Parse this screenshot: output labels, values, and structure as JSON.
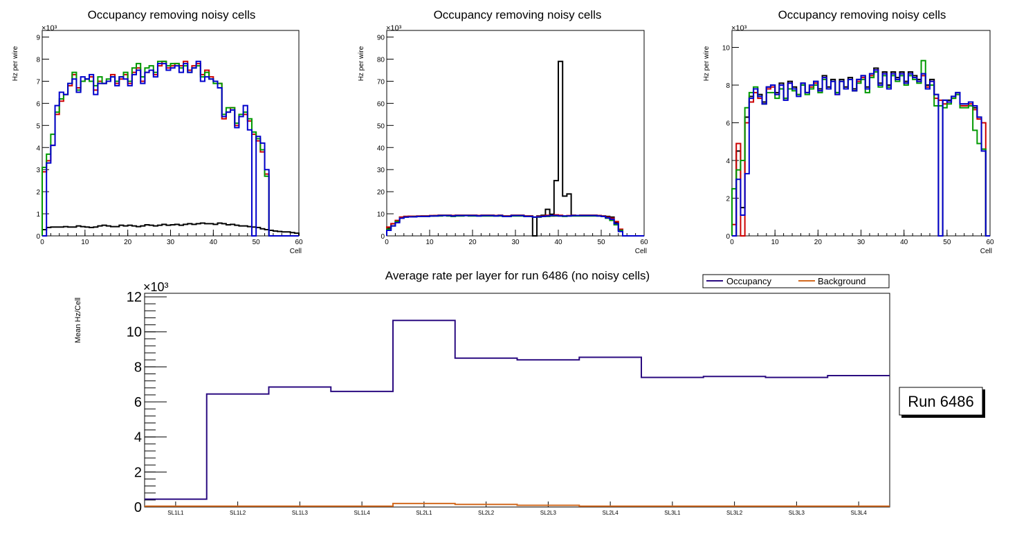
{
  "chart_data": [
    {
      "type": "step",
      "title": "Occupancy removing noisy cells",
      "xlabel": "Cell",
      "ylabel": "Hz per wire",
      "exponent": "×10³",
      "xlim": [
        0,
        60
      ],
      "ylim": [
        0,
        9.3
      ],
      "xticks": [
        0,
        10,
        20,
        30,
        40,
        50,
        60
      ],
      "yticks": [
        0,
        1,
        2,
        3,
        4,
        5,
        6,
        7,
        8,
        9
      ],
      "series": [
        {
          "name": "black",
          "color": "#000000",
          "values": [
            0.28,
            0.38,
            0.4,
            0.4,
            0.4,
            0.42,
            0.4,
            0.4,
            0.45,
            0.42,
            0.4,
            0.38,
            0.4,
            0.45,
            0.48,
            0.45,
            0.42,
            0.42,
            0.48,
            0.45,
            0.48,
            0.45,
            0.42,
            0.45,
            0.5,
            0.48,
            0.45,
            0.48,
            0.52,
            0.48,
            0.5,
            0.52,
            0.48,
            0.52,
            0.55,
            0.52,
            0.55,
            0.58,
            0.55,
            0.55,
            0.52,
            0.58,
            0.55,
            0.5,
            0.52,
            0.48,
            0.45,
            0.45,
            0.42,
            0.4,
            0.38,
            0.32,
            0.28,
            0.25,
            0.22,
            0.2,
            0.18,
            0.18,
            0.15,
            0.12
          ]
        },
        {
          "name": "red",
          "color": "#cc0000",
          "values": [
            2.9,
            3.4,
            4.1,
            5.5,
            6.1,
            6.4,
            6.8,
            7.3,
            6.7,
            7.0,
            7.1,
            7.2,
            6.6,
            7.0,
            6.9,
            7.0,
            7.3,
            6.9,
            7.1,
            7.3,
            6.9,
            7.4,
            7.6,
            7.0,
            7.4,
            7.5,
            7.3,
            7.7,
            7.9,
            7.6,
            7.7,
            7.8,
            7.7,
            7.9,
            7.5,
            7.7,
            7.8,
            7.3,
            7.5,
            7.2,
            7.0,
            6.9,
            5.3,
            5.6,
            5.8,
            5.0,
            5.4,
            5.5,
            5.2,
            4.6,
            4.3,
            3.8,
            2.8,
            0.0,
            0.0,
            0.0,
            0.0,
            0.0,
            0.0,
            0.0
          ]
        },
        {
          "name": "green",
          "color": "#009900",
          "values": [
            3.1,
            3.7,
            4.6,
            5.6,
            6.2,
            6.4,
            6.9,
            7.4,
            6.6,
            7.0,
            7.1,
            7.0,
            6.8,
            7.2,
            6.9,
            7.1,
            7.2,
            7.0,
            7.2,
            7.4,
            7.0,
            7.6,
            7.8,
            7.2,
            7.6,
            7.7,
            7.4,
            7.9,
            7.9,
            7.7,
            7.8,
            7.8,
            7.6,
            7.7,
            7.4,
            7.6,
            7.7,
            7.2,
            7.4,
            7.1,
            6.9,
            6.9,
            5.5,
            5.8,
            5.8,
            5.1,
            5.5,
            5.6,
            5.3,
            4.7,
            4.4,
            3.9,
            2.7,
            0.0,
            0.0,
            0.0,
            0.0,
            0.0,
            0.0,
            0.0
          ]
        },
        {
          "name": "blue",
          "color": "#0000cc",
          "values": [
            0.0,
            3.3,
            4.1,
            5.9,
            6.5,
            6.4,
            6.9,
            7.1,
            6.5,
            7.2,
            7.1,
            7.3,
            6.4,
            6.9,
            6.9,
            7.0,
            7.2,
            6.8,
            7.2,
            7.1,
            6.8,
            7.3,
            7.5,
            6.9,
            7.4,
            7.5,
            7.2,
            7.8,
            7.8,
            7.5,
            7.6,
            7.7,
            7.4,
            7.8,
            7.4,
            7.6,
            7.9,
            7.0,
            7.2,
            7.1,
            7.0,
            6.7,
            5.4,
            5.6,
            5.7,
            4.9,
            5.4,
            5.9,
            4.8,
            0.0,
            4.5,
            4.2,
            3.0,
            0.0,
            0.0,
            0.0,
            0.0,
            0.0,
            0.0,
            0.0
          ]
        }
      ]
    },
    {
      "type": "step",
      "title": "Occupancy removing noisy cells",
      "xlabel": "Cell",
      "ylabel": "Hz per wire",
      "exponent": "×10³",
      "xlim": [
        0,
        60
      ],
      "ylim": [
        0,
        93
      ],
      "xticks": [
        0,
        10,
        20,
        30,
        40,
        50,
        60
      ],
      "yticks": [
        0,
        10,
        20,
        30,
        40,
        50,
        60,
        70,
        80,
        90
      ],
      "series": [
        {
          "name": "black",
          "color": "#000000",
          "values": [
            3.5,
            5.5,
            6.5,
            8.5,
            8.8,
            8.8,
            8.8,
            8.8,
            9.0,
            9.0,
            9.0,
            9.2,
            9.3,
            9.3,
            9.3,
            9.2,
            9.3,
            9.3,
            9.3,
            9.3,
            9.3,
            9.2,
            9.3,
            9.3,
            9.3,
            9.2,
            9.3,
            9.0,
            9.0,
            9.3,
            9.3,
            9.3,
            9.0,
            9.0,
            0.0,
            9.0,
            9.3,
            12.0,
            9.8,
            25.0,
            79.0,
            18.0,
            19.0,
            9.3,
            9.2,
            9.3,
            9.3,
            9.3,
            9.3,
            9.2,
            9.0,
            8.8,
            8.5,
            6.0,
            2.5,
            0.0,
            0.0,
            0.0,
            0.0,
            0.0
          ]
        },
        {
          "name": "red",
          "color": "#cc0000",
          "values": [
            4.0,
            5.5,
            7.0,
            8.5,
            8.8,
            8.9,
            8.9,
            9.0,
            9.0,
            9.0,
            9.2,
            9.2,
            9.3,
            9.3,
            9.3,
            9.2,
            9.3,
            9.3,
            9.3,
            9.3,
            9.3,
            9.2,
            9.3,
            9.3,
            9.3,
            9.2,
            9.3,
            9.0,
            9.0,
            9.3,
            9.3,
            9.3,
            9.0,
            9.0,
            8.5,
            8.8,
            9.0,
            9.3,
            9.0,
            9.5,
            9.3,
            9.0,
            9.2,
            9.3,
            9.2,
            9.3,
            9.3,
            9.3,
            9.3,
            9.2,
            9.0,
            8.5,
            8.0,
            6.5,
            3.0,
            0.0,
            0.0,
            0.0,
            0.0,
            0.0
          ]
        },
        {
          "name": "green",
          "color": "#009900",
          "values": [
            3.0,
            4.5,
            6.5,
            8.0,
            8.5,
            8.6,
            8.7,
            8.8,
            8.8,
            8.8,
            9.0,
            9.0,
            9.0,
            9.2,
            9.0,
            8.8,
            9.0,
            9.0,
            9.2,
            9.0,
            9.0,
            9.0,
            9.0,
            9.0,
            9.0,
            9.0,
            9.0,
            8.8,
            8.8,
            9.0,
            9.0,
            9.0,
            8.8,
            8.8,
            8.5,
            8.5,
            8.8,
            8.8,
            9.0,
            9.0,
            9.0,
            8.8,
            9.0,
            9.0,
            9.0,
            9.0,
            9.0,
            9.0,
            9.0,
            9.0,
            8.8,
            8.0,
            7.0,
            5.0,
            2.5,
            0.0,
            0.0,
            0.0,
            0.0,
            0.0
          ]
        },
        {
          "name": "blue",
          "color": "#0000cc",
          "values": [
            2.5,
            4.5,
            6.0,
            8.0,
            8.5,
            8.6,
            8.6,
            8.8,
            8.8,
            8.8,
            9.0,
            9.0,
            9.2,
            9.2,
            9.2,
            9.0,
            9.2,
            9.2,
            9.2,
            9.2,
            9.2,
            9.0,
            9.2,
            9.2,
            9.2,
            9.0,
            9.2,
            8.8,
            8.8,
            9.2,
            9.2,
            9.2,
            8.8,
            8.8,
            8.5,
            8.6,
            8.8,
            9.0,
            9.2,
            9.2,
            9.0,
            9.0,
            9.0,
            9.2,
            9.2,
            9.2,
            9.2,
            9.2,
            9.2,
            9.0,
            8.8,
            8.2,
            7.5,
            5.5,
            2.0,
            0.0,
            0.0,
            0.0,
            0.0,
            0.0
          ]
        }
      ]
    },
    {
      "type": "step",
      "title": "Occupancy removing noisy cells",
      "xlabel": "Cell",
      "ylabel": "Hz per wire",
      "exponent": "×10³",
      "xlim": [
        0,
        60
      ],
      "ylim": [
        0,
        10.9
      ],
      "xticks": [
        0,
        10,
        20,
        30,
        40,
        50,
        60
      ],
      "yticks": [
        0,
        2,
        4,
        6,
        8,
        10
      ],
      "series": [
        {
          "name": "black",
          "color": "#000000",
          "values": [
            0.0,
            4.5,
            1.5,
            6.3,
            7.4,
            7.8,
            7.5,
            7.1,
            7.9,
            8.0,
            7.6,
            8.1,
            7.3,
            8.2,
            7.9,
            7.5,
            8.1,
            7.6,
            8.0,
            8.2,
            7.8,
            8.5,
            7.9,
            8.3,
            7.6,
            8.3,
            7.9,
            8.4,
            7.8,
            8.3,
            8.5,
            7.9,
            8.6,
            8.9,
            8.1,
            8.7,
            8.0,
            8.7,
            8.4,
            8.7,
            8.2,
            8.7,
            8.5,
            8.3,
            8.6,
            8.0,
            8.3,
            7.5,
            0.0,
            7.2,
            7.2,
            7.4,
            7.6,
            7.0,
            7.0,
            7.1,
            6.8,
            6.3,
            4.6,
            0.0
          ]
        },
        {
          "name": "red",
          "color": "#cc0000",
          "values": [
            0.6,
            4.9,
            0.0,
            6.0,
            7.1,
            7.6,
            7.3,
            7.0,
            7.8,
            7.9,
            7.5,
            8.0,
            7.3,
            8.1,
            7.8,
            7.5,
            8.0,
            7.6,
            7.9,
            8.1,
            7.7,
            8.4,
            7.8,
            8.2,
            7.5,
            8.2,
            7.8,
            8.3,
            7.7,
            8.2,
            8.4,
            7.8,
            8.5,
            8.8,
            8.0,
            8.6,
            7.9,
            8.6,
            8.3,
            8.6,
            8.1,
            8.6,
            8.4,
            8.2,
            8.5,
            7.9,
            8.2,
            7.3,
            7.2,
            7.0,
            7.1,
            7.3,
            7.5,
            6.9,
            6.9,
            7.0,
            6.7,
            6.2,
            6.0,
            0.0
          ]
        },
        {
          "name": "green",
          "color": "#009900",
          "values": [
            2.5,
            3.5,
            4.0,
            6.8,
            7.6,
            7.9,
            7.4,
            7.0,
            7.6,
            7.6,
            7.3,
            7.8,
            7.3,
            7.8,
            7.7,
            7.5,
            8.0,
            7.5,
            7.8,
            8.0,
            7.6,
            8.3,
            7.8,
            8.2,
            7.6,
            8.2,
            7.8,
            8.3,
            7.7,
            8.1,
            8.3,
            7.6,
            8.4,
            8.7,
            7.9,
            8.5,
            7.9,
            8.5,
            8.2,
            8.5,
            8.0,
            8.5,
            8.3,
            8.1,
            9.3,
            7.8,
            8.0,
            6.9,
            6.9,
            6.8,
            7.0,
            7.3,
            7.5,
            6.8,
            6.8,
            6.9,
            5.6,
            4.9,
            4.6,
            0.0
          ]
        },
        {
          "name": "blue",
          "color": "#0000cc",
          "values": [
            0.0,
            3.0,
            1.1,
            3.3,
            7.3,
            7.8,
            7.4,
            7.0,
            7.9,
            8.0,
            7.5,
            8.0,
            7.2,
            8.1,
            7.8,
            7.4,
            8.1,
            7.6,
            8.0,
            8.2,
            7.7,
            8.4,
            7.8,
            8.2,
            7.5,
            8.2,
            7.8,
            8.3,
            7.7,
            8.3,
            8.5,
            7.8,
            8.6,
            8.8,
            8.0,
            8.6,
            7.8,
            8.6,
            8.3,
            8.6,
            8.1,
            8.6,
            8.4,
            8.2,
            8.6,
            7.8,
            8.2,
            7.5,
            0.0,
            7.2,
            7.1,
            7.4,
            7.6,
            7.0,
            7.0,
            7.1,
            6.9,
            6.3,
            4.5,
            0.0
          ]
        }
      ]
    },
    {
      "type": "step",
      "title": "Average rate per layer for run 6486 (no noisy cells)",
      "xlabel": "",
      "ylabel": "Mean Hz/Cell",
      "exponent": "×10³",
      "ylim": [
        0,
        12.2
      ],
      "yticks": [
        0,
        2,
        4,
        6,
        8,
        10,
        12
      ],
      "categories": [
        "SL1L1",
        "SL1L2",
        "SL1L3",
        "SL1L4",
        "SL2L1",
        "SL2L2",
        "SL2L3",
        "SL2L4",
        "SL3L1",
        "SL3L2",
        "SL3L3",
        "SL3L4"
      ],
      "legend": {
        "position": "top-right",
        "entries": [
          "Occupancy",
          "Background"
        ]
      },
      "series": [
        {
          "name": "Occupancy",
          "color": "#2a0a80",
          "values": [
            0.45,
            6.45,
            6.85,
            6.6,
            10.65,
            8.5,
            8.4,
            8.55,
            7.4,
            7.45,
            7.4,
            7.5
          ]
        },
        {
          "name": "Background",
          "color": "#d2691e",
          "values": [
            0.05,
            0.05,
            0.05,
            0.05,
            0.2,
            0.15,
            0.1,
            0.05,
            0.05,
            0.05,
            0.05,
            0.05
          ]
        }
      ]
    }
  ],
  "run_label": "Run 6486"
}
